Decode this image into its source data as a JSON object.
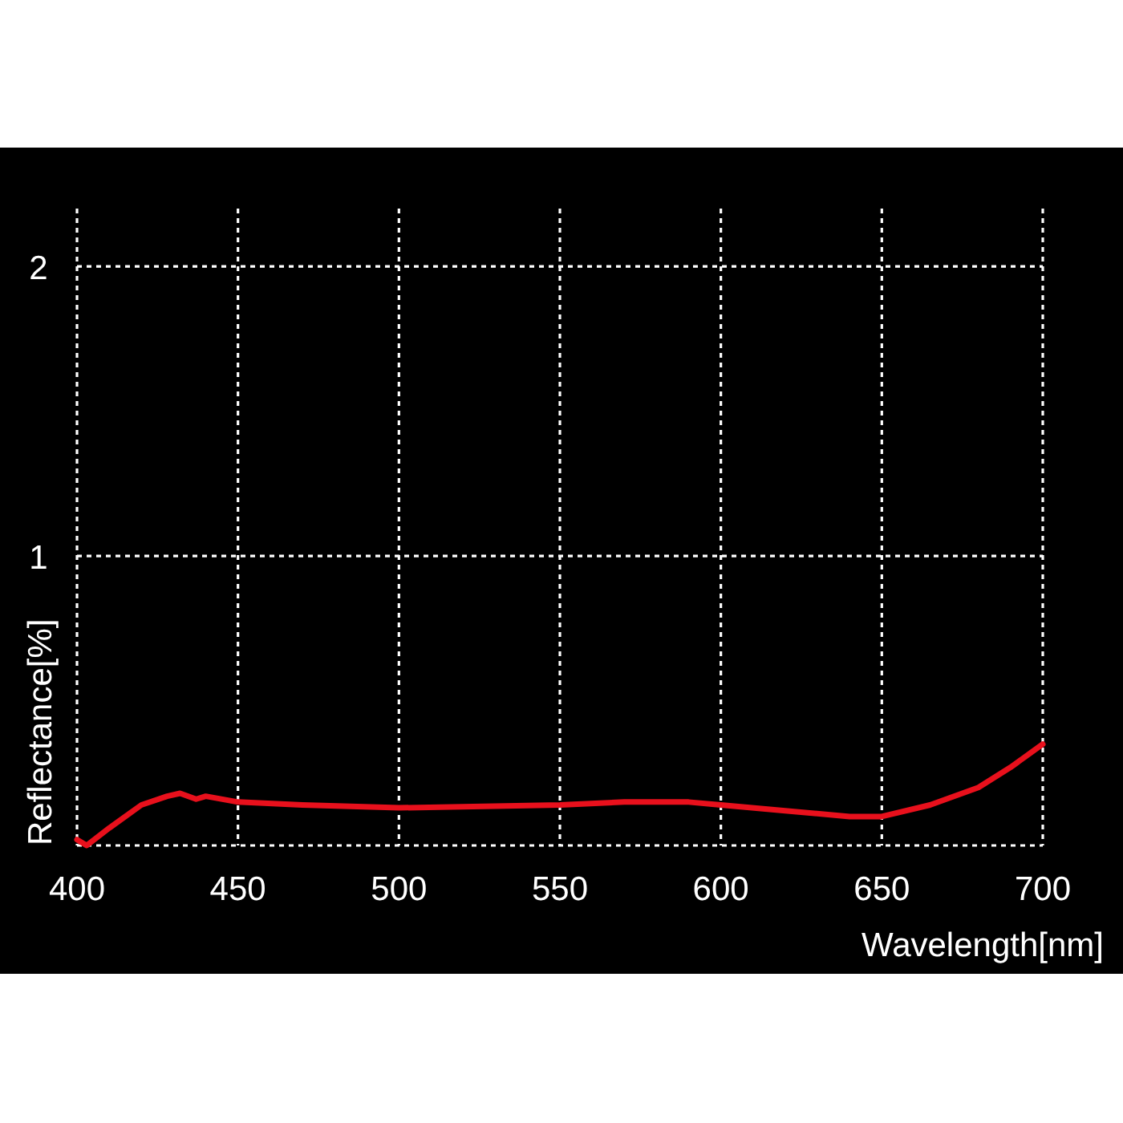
{
  "chart_data": {
    "type": "line",
    "xlabel": "Wavelength[nm]",
    "ylabel": "Reflectance[%]",
    "x": [
      400,
      403,
      410,
      420,
      428,
      432,
      437,
      440,
      450,
      470,
      500,
      550,
      570,
      590,
      600,
      620,
      640,
      650,
      665,
      680,
      690,
      700
    ],
    "series": [
      {
        "color": "#e8101c",
        "values": [
          0.02,
          0.0,
          0.06,
          0.14,
          0.17,
          0.18,
          0.16,
          0.17,
          0.15,
          0.14,
          0.13,
          0.14,
          0.15,
          0.15,
          0.14,
          0.12,
          0.1,
          0.1,
          0.14,
          0.2,
          0.27,
          0.35
        ]
      }
    ],
    "xlim": [
      400,
      700
    ],
    "ylim": [
      0,
      2.2
    ],
    "xticks": [
      400,
      450,
      500,
      550,
      600,
      650,
      700
    ],
    "yticks": [
      {
        "value": 0,
        "label": null
      },
      1,
      2
    ],
    "grid": true,
    "marker": "none",
    "line_style": "solid"
  }
}
